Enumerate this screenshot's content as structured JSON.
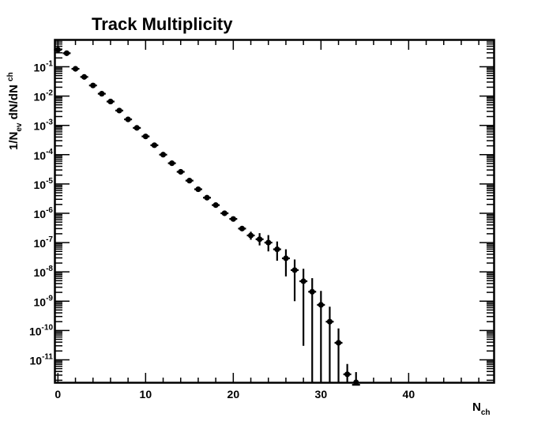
{
  "chart_data": {
    "type": "scatter",
    "title": "Track Multiplicity",
    "xlabel": {
      "main": "N",
      "sub": "ch"
    },
    "ylabel": {
      "p1": "1/N",
      "s1": "ev",
      "p2": " dN/dN ",
      "s2": "ch"
    },
    "xlim": [
      -0.3,
      49.7
    ],
    "ylim": [
      1.7e-12,
      0.8
    ],
    "yscale": "log",
    "grid": false,
    "xticks": [
      "0",
      "10",
      "20",
      "30",
      "40"
    ],
    "xtick_values": [
      0,
      10,
      20,
      30,
      40
    ],
    "yticks": [
      "-1",
      "-2",
      "-3",
      "-4",
      "-5",
      "-6",
      "-7",
      "-8",
      "-9",
      "-10",
      "-11"
    ],
    "ytick_base": "10",
    "series": [
      {
        "marker": "circle",
        "color": "#000000",
        "x": [
          0,
          1,
          2,
          3,
          4,
          5,
          6,
          7,
          8,
          9,
          10,
          11,
          12,
          13,
          14,
          15,
          16,
          17,
          18,
          19,
          20,
          21,
          22,
          23,
          24,
          25,
          26,
          27,
          28,
          29,
          30,
          31,
          32,
          33,
          34
        ],
        "y": [
          0.38,
          0.29,
          0.085,
          0.045,
          0.023,
          0.012,
          0.0065,
          0.0032,
          0.0016,
          0.00082,
          0.00042,
          0.00021,
          0.0001,
          5.1e-05,
          2.6e-05,
          1.3e-05,
          6.6e-06,
          3.4e-06,
          1.9e-06,
          1e-06,
          6.4e-07,
          3e-07,
          1.75e-07,
          1.3e-07,
          1e-07,
          5.9e-08,
          2.9e-08,
          1.15e-08,
          4.8e-09,
          2.1e-09,
          7.5e-10,
          2e-10,
          3.8e-11,
          3.2e-12,
          1.4e-12
        ],
        "y_err_low": [
          0.02,
          0.015,
          0.005,
          0.003,
          0.0015,
          0.0008,
          0.0004,
          0.0002,
          0.0001,
          5e-05,
          2.5e-05,
          1.3e-05,
          6e-06,
          3e-06,
          1.6e-06,
          8e-07,
          4.5e-07,
          2.5e-07,
          1.4e-07,
          1e-07,
          8e-08,
          5e-08,
          5e-08,
          5e-08,
          5e-08,
          3.5e-08,
          2.2e-08,
          1.05e-08,
          4.77e-09,
          2.1e-09,
          7.5e-10,
          2e-10,
          3.8e-11,
          2.4e-12,
          1.4e-12
        ],
        "y_err_high": [
          0.02,
          0.015,
          0.005,
          0.003,
          0.0015,
          0.0008,
          0.0004,
          0.0002,
          0.0001,
          5e-05,
          2.5e-05,
          1.3e-05,
          6e-06,
          3e-06,
          1.6e-06,
          8e-07,
          4.5e-07,
          2.5e-07,
          1.4e-07,
          1e-07,
          8e-08,
          5e-08,
          6e-08,
          8e-08,
          8e-08,
          5e-08,
          3e-08,
          1.5e-08,
          8e-09,
          4e-09,
          1.5e-09,
          4.5e-10,
          8e-11,
          4e-12,
          2.4e-12
        ]
      }
    ]
  }
}
